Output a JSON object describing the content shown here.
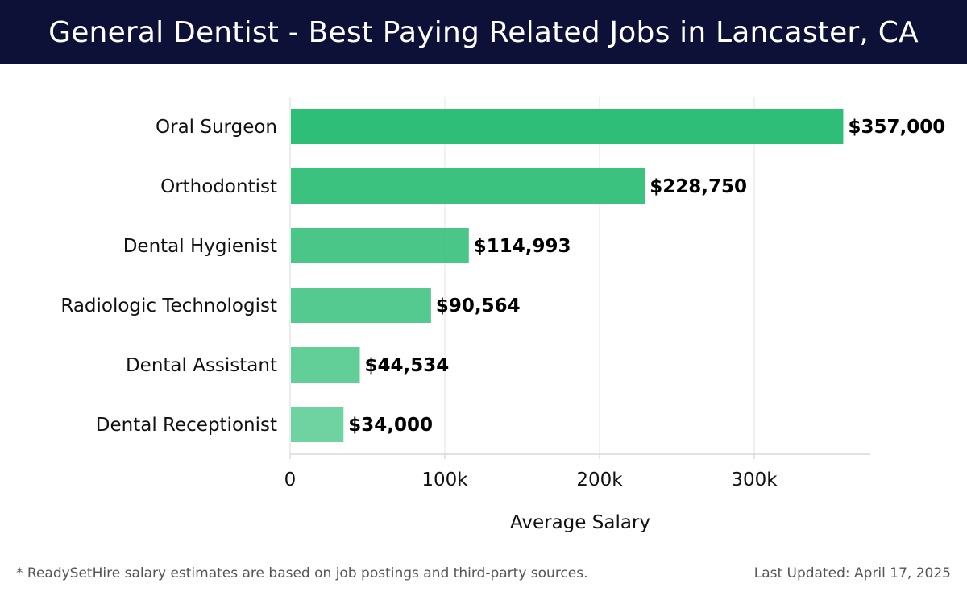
{
  "header": {
    "title": "General Dentist - Best Paying Related Jobs in Lancaster, CA"
  },
  "footer": {
    "note": "* ReadySetHire salary estimates are based on job postings and third-party sources.",
    "updated": "Last Updated: April 17, 2025"
  },
  "colors": {
    "header_bg": "#0d1138",
    "bar_start": "#2bbd74",
    "bar_end": "#5ad19a"
  },
  "chart_data": {
    "type": "bar",
    "orientation": "horizontal",
    "categories": [
      "Oral Surgeon",
      "Orthodontist",
      "Dental Hygienist",
      "Radiologic Technologist",
      "Dental Assistant",
      "Dental Receptionist"
    ],
    "values": [
      357000,
      228750,
      114993,
      90564,
      44534,
      34000
    ],
    "value_labels": [
      "$357,000",
      "$228,750",
      "$114,993",
      "$90,564",
      "$44,534",
      "$34,000"
    ],
    "xlabel": "Average Salary",
    "ylabel": "",
    "xlim": [
      0,
      375000
    ],
    "xticks": [
      0,
      100000,
      200000,
      300000
    ],
    "xtick_labels": [
      "0",
      "100k",
      "200k",
      "300k"
    ],
    "grid": "vertical"
  }
}
